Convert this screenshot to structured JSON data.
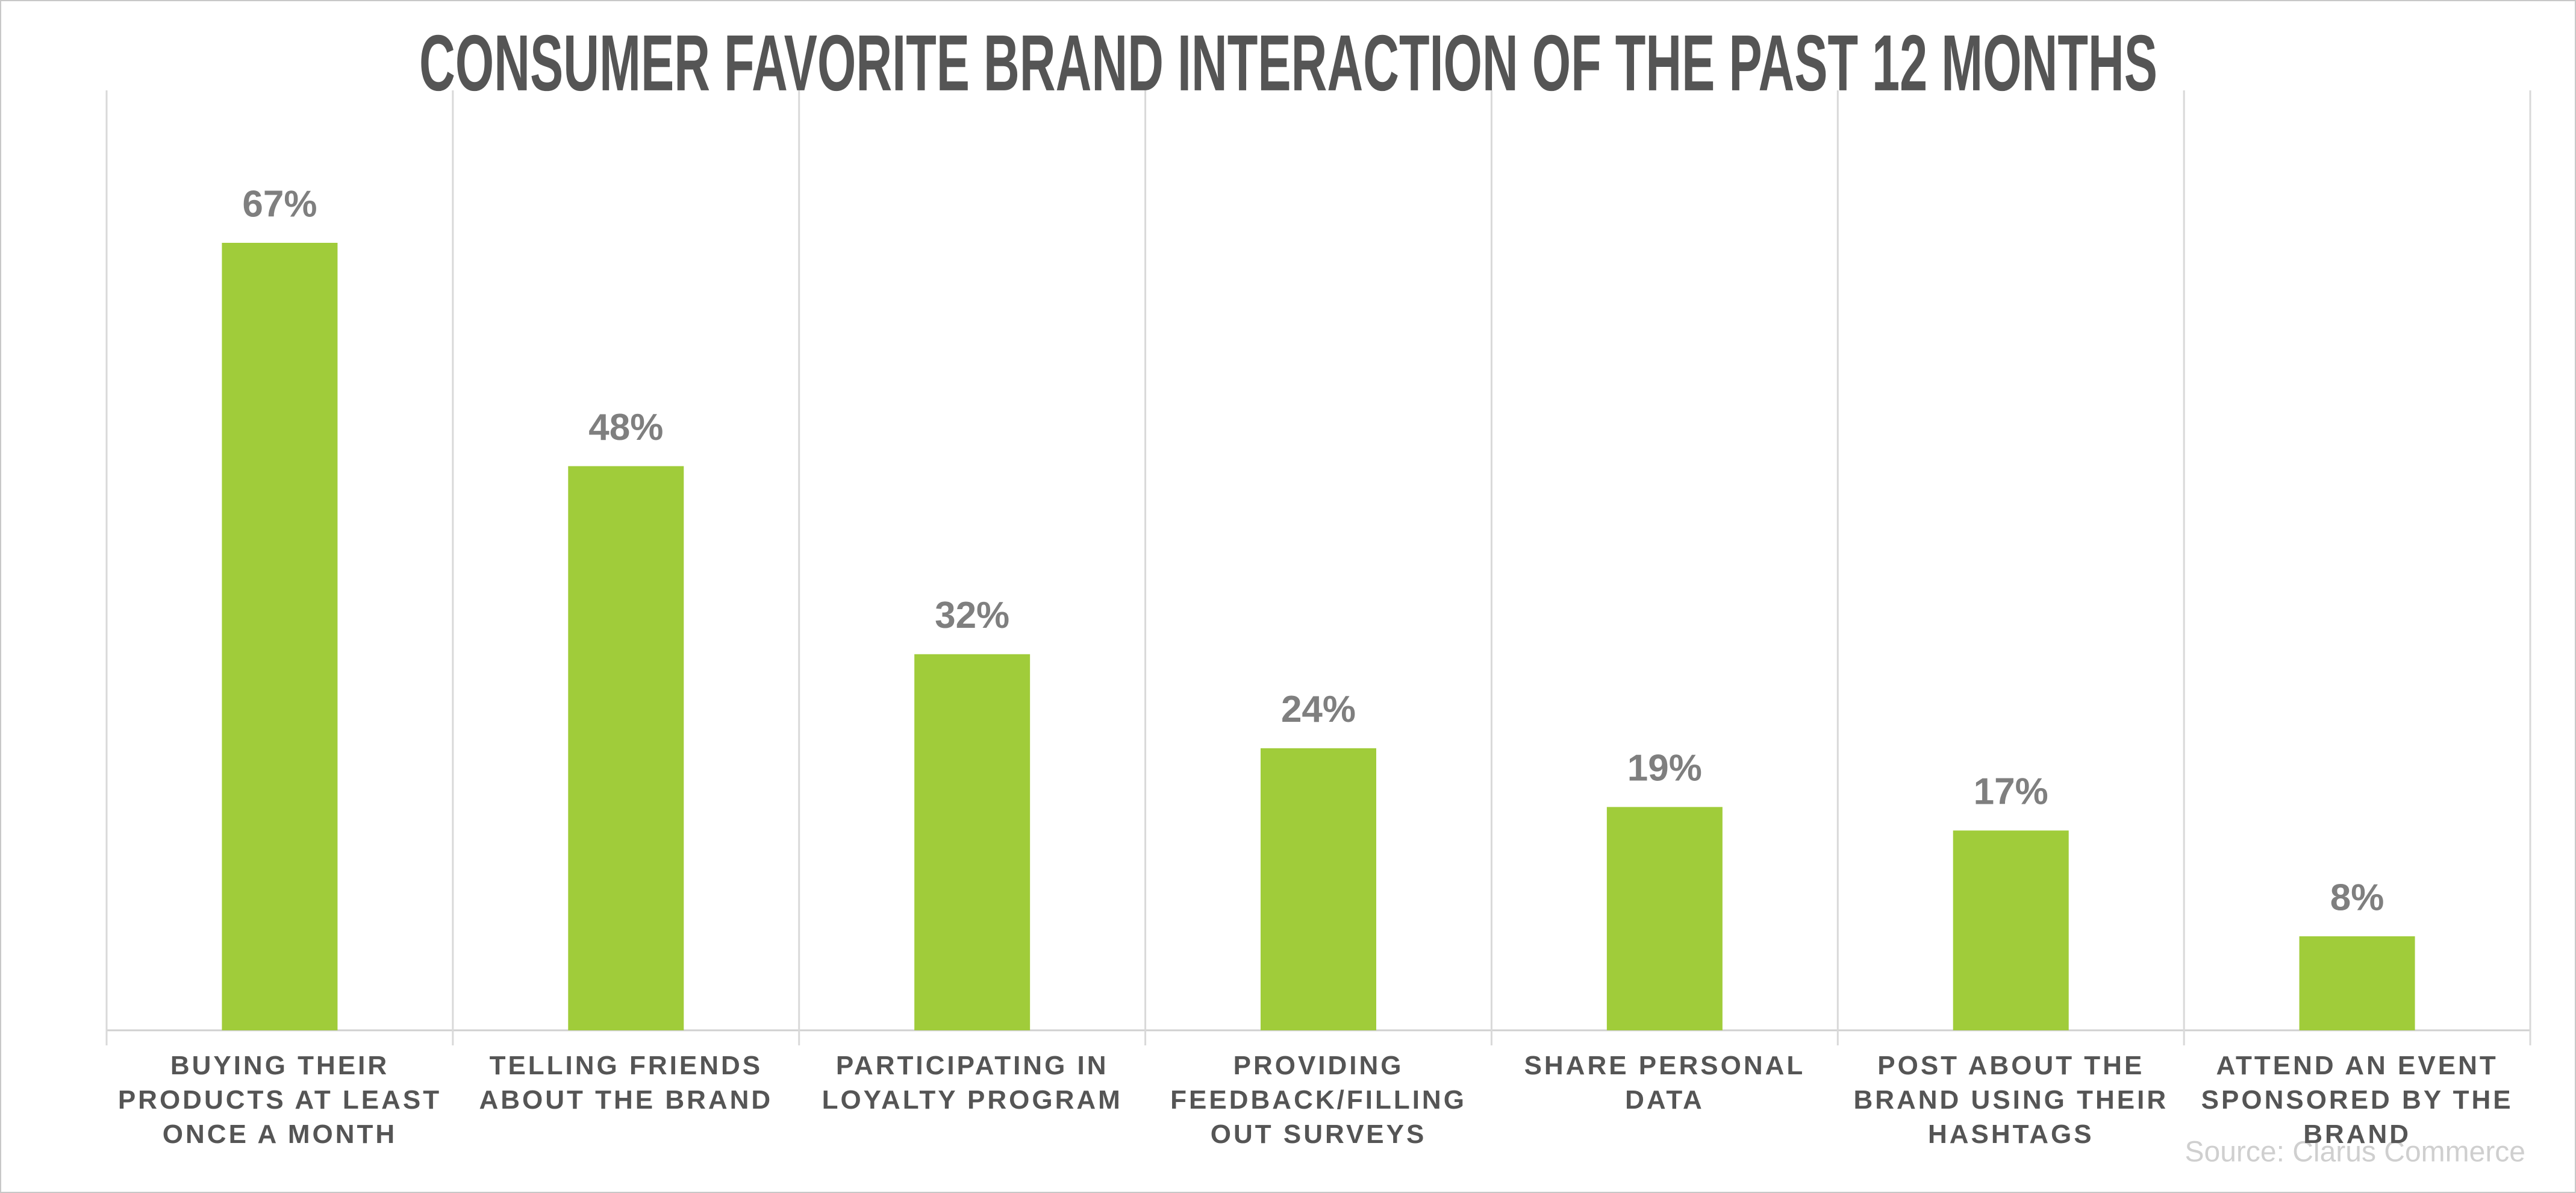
{
  "chart_data": {
    "type": "bar",
    "title": "CONSUMER FAVORITE BRAND INTERACTION OF THE PAST 12 MONTHS",
    "categories": [
      "BUYING THEIR PRODUCTS AT LEAST ONCE A MONTH",
      "TELLING FRIENDS ABOUT THE BRAND",
      "PARTICIPATING IN LOYALTY PROGRAM",
      "PROVIDING FEEDBACK/FILLING OUT SURVEYS",
      "SHARE PERSONAL DATA",
      "POST ABOUT THE BRAND USING THEIR HASHTAGS",
      "ATTEND AN EVENT SPONSORED BY THE BRAND"
    ],
    "values": [
      67,
      48,
      32,
      24,
      19,
      17,
      8
    ],
    "value_labels": [
      "67%",
      "48%",
      "32%",
      "24%",
      "19%",
      "17%",
      "8%"
    ],
    "color": "#a0cc3a",
    "source": "Source: Clarus Commerce"
  }
}
